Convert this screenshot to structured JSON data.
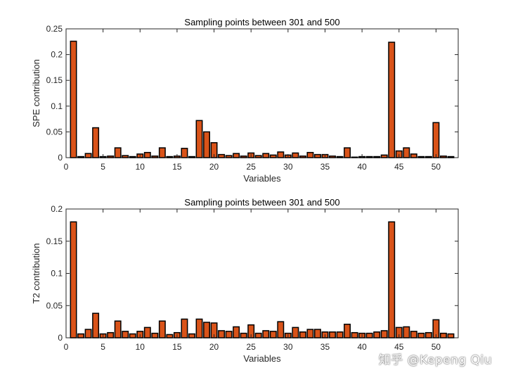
{
  "colors": {
    "bar_fill": "#D95319",
    "bar_edge": "#000000",
    "axis": "#262626"
  },
  "watermark": "知乎 @Kepeng Qiu",
  "chart_data": [
    {
      "type": "bar",
      "title": "Sampling points between 301 and 500",
      "xlabel": "Variables",
      "ylabel": "SPE contribution",
      "xlim": [
        0,
        53
      ],
      "ylim": [
        0,
        0.25
      ],
      "xticks": [
        0,
        5,
        10,
        15,
        20,
        25,
        30,
        35,
        40,
        45,
        50
      ],
      "yticks": [
        0,
        0.05,
        0.1,
        0.15,
        0.2,
        0.25
      ],
      "ytick_labels": [
        "0",
        "0.05",
        "0.1",
        "0.15",
        "0.2",
        "0.25"
      ],
      "grid": false,
      "x": [
        1,
        2,
        3,
        4,
        5,
        6,
        7,
        8,
        9,
        10,
        11,
        12,
        13,
        14,
        15,
        16,
        17,
        18,
        19,
        20,
        21,
        22,
        23,
        24,
        25,
        26,
        27,
        28,
        29,
        30,
        31,
        32,
        33,
        34,
        35,
        36,
        37,
        38,
        39,
        40,
        41,
        42,
        43,
        44,
        45,
        46,
        47,
        48,
        49,
        50,
        51,
        52
      ],
      "values": [
        0.226,
        0.002,
        0.008,
        0.058,
        0.002,
        0.003,
        0.019,
        0.004,
        0.002,
        0.007,
        0.01,
        0.003,
        0.019,
        0.002,
        0.003,
        0.018,
        0.002,
        0.072,
        0.05,
        0.029,
        0.006,
        0.004,
        0.008,
        0.003,
        0.009,
        0.004,
        0.008,
        0.005,
        0.011,
        0.005,
        0.009,
        0.003,
        0.01,
        0.006,
        0.006,
        0.003,
        0.002,
        0.019,
        0.001,
        0.002,
        0.002,
        0.002,
        0.005,
        0.224,
        0.013,
        0.019,
        0.007,
        0.002,
        0.002,
        0.068,
        0.003,
        0.002
      ]
    },
    {
      "type": "bar",
      "title": "Sampling points between 301 and 500",
      "xlabel": "Variables",
      "ylabel": "T2 contribution",
      "xlim": [
        0,
        53
      ],
      "ylim": [
        0,
        0.2
      ],
      "xticks": [
        0,
        5,
        10,
        15,
        20,
        25,
        30,
        35,
        40,
        45,
        50
      ],
      "yticks": [
        0,
        0.05,
        0.1,
        0.15,
        0.2
      ],
      "ytick_labels": [
        "0",
        "0.05",
        "0.1",
        "0.15",
        "0.2"
      ],
      "grid": false,
      "x": [
        1,
        2,
        3,
        4,
        5,
        6,
        7,
        8,
        9,
        10,
        11,
        12,
        13,
        14,
        15,
        16,
        17,
        18,
        19,
        20,
        21,
        22,
        23,
        24,
        25,
        26,
        27,
        28,
        29,
        30,
        31,
        32,
        33,
        34,
        35,
        36,
        37,
        38,
        39,
        40,
        41,
        42,
        43,
        44,
        45,
        46,
        47,
        48,
        49,
        50,
        51,
        52
      ],
      "values": [
        0.18,
        0.006,
        0.013,
        0.038,
        0.006,
        0.008,
        0.026,
        0.01,
        0.006,
        0.01,
        0.016,
        0.007,
        0.026,
        0.005,
        0.008,
        0.029,
        0.006,
        0.029,
        0.024,
        0.023,
        0.011,
        0.01,
        0.017,
        0.007,
        0.02,
        0.007,
        0.011,
        0.01,
        0.025,
        0.007,
        0.016,
        0.009,
        0.013,
        0.013,
        0.009,
        0.009,
        0.009,
        0.021,
        0.008,
        0.007,
        0.007,
        0.009,
        0.011,
        0.18,
        0.016,
        0.017,
        0.01,
        0.007,
        0.008,
        0.028,
        0.007,
        0.006
      ]
    }
  ]
}
